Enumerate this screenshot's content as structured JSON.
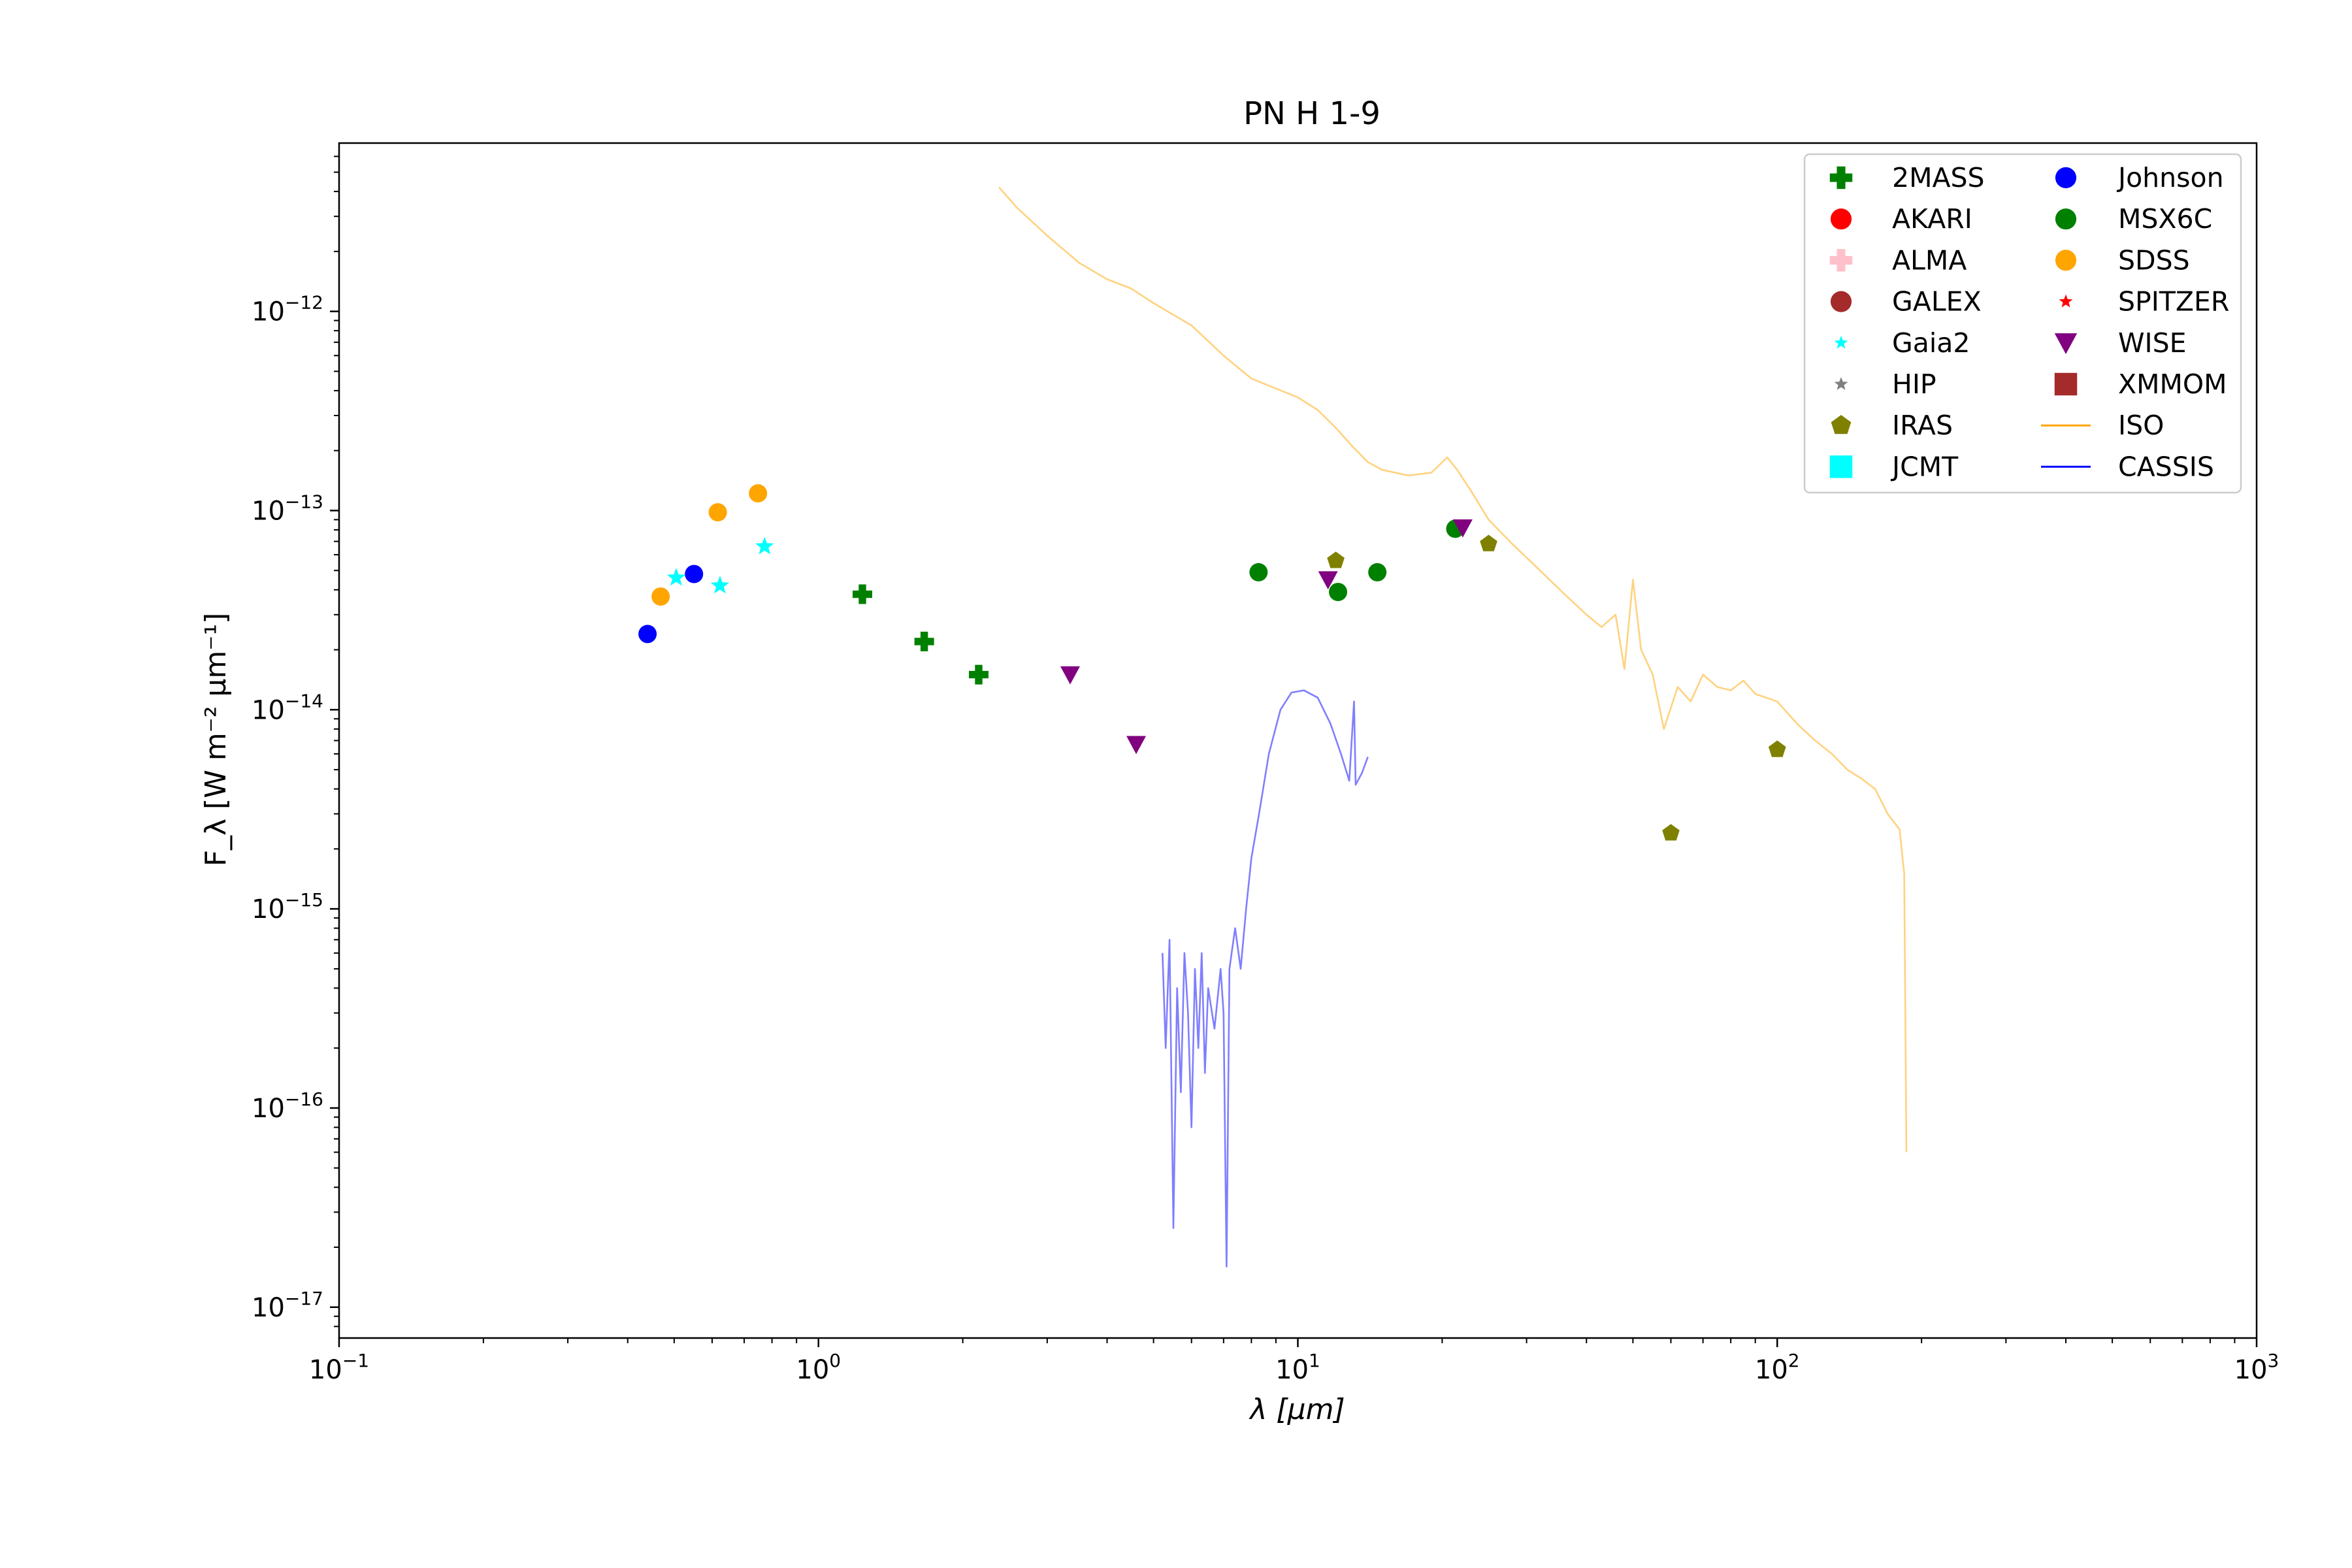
{
  "chart_data": {
    "type": "scatter",
    "title": "PN H 1-9",
    "xlabel": "λ [μm]",
    "ylabel": "F_λ [W m⁻² μm⁻¹]",
    "xscale": "log",
    "yscale": "log",
    "xlim": [
      0.1,
      1000
    ],
    "ylim": [
      7e-18,
      7e-12
    ],
    "grid": false,
    "legend_position": "top-right",
    "x_ticks": [
      {
        "value": 0.1,
        "base": "10",
        "exp": "−1"
      },
      {
        "value": 1,
        "base": "10",
        "exp": "0"
      },
      {
        "value": 10,
        "base": "10",
        "exp": "1"
      },
      {
        "value": 100,
        "base": "10",
        "exp": "2"
      },
      {
        "value": 1000,
        "base": "10",
        "exp": "3"
      }
    ],
    "y_ticks": [
      {
        "value": 1e-17,
        "base": "10",
        "exp": "−17"
      },
      {
        "value": 1e-16,
        "base": "10",
        "exp": "−16"
      },
      {
        "value": 1e-15,
        "base": "10",
        "exp": "−15"
      },
      {
        "value": 1e-14,
        "base": "10",
        "exp": "−14"
      },
      {
        "value": 1e-13,
        "base": "10",
        "exp": "−13"
      },
      {
        "value": 1e-12,
        "base": "10",
        "exp": "−12"
      }
    ],
    "series": [
      {
        "name": "2MASS",
        "marker": "plus",
        "color": "#008000",
        "points": [
          [
            1.235,
            3.8e-14
          ],
          [
            1.662,
            2.2e-14
          ],
          [
            2.159,
            1.5e-14
          ]
        ]
      },
      {
        "name": "AKARI",
        "marker": "circle",
        "color": "#ff0000",
        "points": []
      },
      {
        "name": "ALMA",
        "marker": "plus",
        "color": "#ffc0cb",
        "points": []
      },
      {
        "name": "GALEX",
        "marker": "circle",
        "color": "#a52a2a",
        "points": []
      },
      {
        "name": "Gaia2",
        "marker": "star",
        "color": "#00ffff",
        "points": [
          [
            0.505,
            4.6e-14
          ],
          [
            0.623,
            4.2e-14
          ],
          [
            0.772,
            6.6e-14
          ]
        ]
      },
      {
        "name": "HIP",
        "marker": "star",
        "color": "#808080",
        "points": []
      },
      {
        "name": "IRAS",
        "marker": "pentagon",
        "color": "#808000",
        "points": [
          [
            12,
            5.6e-14
          ],
          [
            25,
            6.8e-14
          ],
          [
            60,
            2.4e-15
          ],
          [
            100,
            6.3e-15
          ]
        ]
      },
      {
        "name": "JCMT",
        "marker": "square",
        "color": "#00ffff",
        "points": []
      },
      {
        "name": "Johnson",
        "marker": "circle",
        "color": "#0000ff",
        "points": [
          [
            0.44,
            2.4e-14
          ],
          [
            0.55,
            4.8e-14
          ]
        ]
      },
      {
        "name": "MSX6C",
        "marker": "circle",
        "color": "#008000",
        "points": [
          [
            8.28,
            4.9e-14
          ],
          [
            12.13,
            3.9e-14
          ],
          [
            14.65,
            4.9e-14
          ],
          [
            21.3,
            8.1e-14
          ]
        ]
      },
      {
        "name": "SDSS",
        "marker": "circle",
        "color": "#ffa500",
        "points": [
          [
            0.4686,
            3.7e-14
          ],
          [
            0.6166,
            9.8e-14
          ],
          [
            0.748,
            1.22e-13
          ]
        ]
      },
      {
        "name": "SPITZER",
        "marker": "star",
        "color": "#ff0000",
        "points": []
      },
      {
        "name": "WISE",
        "marker": "triangle-down",
        "color": "#800080",
        "points": [
          [
            3.35,
            1.5e-14
          ],
          [
            4.6,
            6.7e-15
          ],
          [
            11.56,
            4.5e-14
          ],
          [
            22.08,
            8.2e-14
          ]
        ]
      },
      {
        "name": "XMMOM",
        "marker": "square",
        "color": "#a52a2a",
        "points": []
      },
      {
        "name": "ISO",
        "marker": "line",
        "color": "#ffa500",
        "opacity": 0.5,
        "points": [
          [
            2.38,
            4.2e-12
          ],
          [
            2.6,
            3.3e-12
          ],
          [
            3.0,
            2.4e-12
          ],
          [
            3.5,
            1.75e-12
          ],
          [
            4.0,
            1.45e-12
          ],
          [
            4.5,
            1.3e-12
          ],
          [
            5.0,
            1.1e-12
          ],
          [
            6.0,
            8.5e-13
          ],
          [
            7.0,
            6e-13
          ],
          [
            8.0,
            4.6e-13
          ],
          [
            9.0,
            4.1e-13
          ],
          [
            10.0,
            3.7e-13
          ],
          [
            11.0,
            3.2e-13
          ],
          [
            12.0,
            2.6e-13
          ],
          [
            13.0,
            2.1e-13
          ],
          [
            14.0,
            1.75e-13
          ],
          [
            15.0,
            1.6e-13
          ],
          [
            17.0,
            1.5e-13
          ],
          [
            19.0,
            1.55e-13
          ],
          [
            20.5,
            1.85e-13
          ],
          [
            21.5,
            1.6e-13
          ],
          [
            23.0,
            1.25e-13
          ],
          [
            25.0,
            9e-14
          ],
          [
            28.0,
            6.8e-14
          ],
          [
            32.0,
            5e-14
          ],
          [
            36.0,
            3.8e-14
          ],
          [
            40.0,
            3e-14
          ],
          [
            43.0,
            2.6e-14
          ],
          [
            46.0,
            3e-14
          ],
          [
            48.0,
            1.6e-14
          ],
          [
            50.0,
            4.5e-14
          ],
          [
            52.0,
            2e-14
          ],
          [
            55.0,
            1.5e-14
          ],
          [
            58.0,
            8e-15
          ],
          [
            62.0,
            1.3e-14
          ],
          [
            66.0,
            1.1e-14
          ],
          [
            70.0,
            1.5e-14
          ],
          [
            75.0,
            1.3e-14
          ],
          [
            80.0,
            1.25e-14
          ],
          [
            85.0,
            1.4e-14
          ],
          [
            90.0,
            1.2e-14
          ],
          [
            100.0,
            1.1e-14
          ],
          [
            110.0,
            8.5e-15
          ],
          [
            120.0,
            7e-15
          ],
          [
            130.0,
            6e-15
          ],
          [
            140.0,
            5e-15
          ],
          [
            150.0,
            4.5e-15
          ],
          [
            160.0,
            4e-15
          ],
          [
            170.0,
            3e-15
          ],
          [
            180.0,
            2.5e-15
          ],
          [
            184.0,
            1.5e-15
          ],
          [
            186.0,
            6e-17
          ]
        ]
      },
      {
        "name": "CASSIS",
        "marker": "line",
        "color": "#0000ff",
        "opacity": 0.5,
        "points": [
          [
            5.22,
            6e-16
          ],
          [
            5.3,
            2e-16
          ],
          [
            5.4,
            7e-16
          ],
          [
            5.5,
            2.5e-17
          ],
          [
            5.6,
            4e-16
          ],
          [
            5.7,
            1.2e-16
          ],
          [
            5.8,
            6e-16
          ],
          [
            5.9,
            3e-16
          ],
          [
            6.0,
            8e-17
          ],
          [
            6.1,
            5e-16
          ],
          [
            6.2,
            2e-16
          ],
          [
            6.3,
            6e-16
          ],
          [
            6.4,
            1.5e-16
          ],
          [
            6.5,
            4e-16
          ],
          [
            6.7,
            2.5e-16
          ],
          [
            6.9,
            5e-16
          ],
          [
            7.0,
            3e-16
          ],
          [
            7.1,
            1.6e-17
          ],
          [
            7.2,
            5e-16
          ],
          [
            7.4,
            8e-16
          ],
          [
            7.6,
            5e-16
          ],
          [
            7.8,
            1e-15
          ],
          [
            8.0,
            1.8e-15
          ],
          [
            8.3,
            3e-15
          ],
          [
            8.7,
            6e-15
          ],
          [
            9.2,
            1e-14
          ],
          [
            9.7,
            1.22e-14
          ],
          [
            10.3,
            1.25e-14
          ],
          [
            11.0,
            1.15e-14
          ],
          [
            11.7,
            8.5e-15
          ],
          [
            12.3,
            6e-15
          ],
          [
            12.8,
            4.4e-15
          ],
          [
            13.1,
            1.1e-14
          ],
          [
            13.2,
            4.2e-15
          ],
          [
            13.6,
            4.8e-15
          ],
          [
            14.0,
            5.8e-15
          ]
        ]
      }
    ]
  }
}
